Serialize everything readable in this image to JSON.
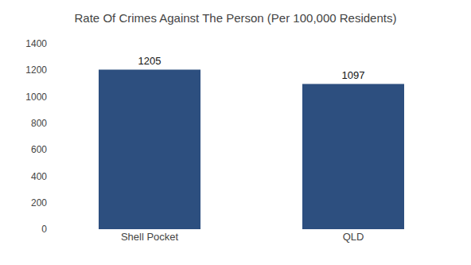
{
  "chart_data": {
    "type": "bar",
    "title": "Rate Of Crimes Against The Person (Per 100,000 Residents)",
    "categories": [
      "Shell Pocket",
      "QLD"
    ],
    "values": [
      1205,
      1097
    ],
    "color": "#2d4f7f",
    "ylim": [
      0,
      1400
    ],
    "yticks": [
      0,
      200,
      400,
      600,
      800,
      1000,
      1200,
      1400
    ],
    "grid": false,
    "data_labels": true
  }
}
